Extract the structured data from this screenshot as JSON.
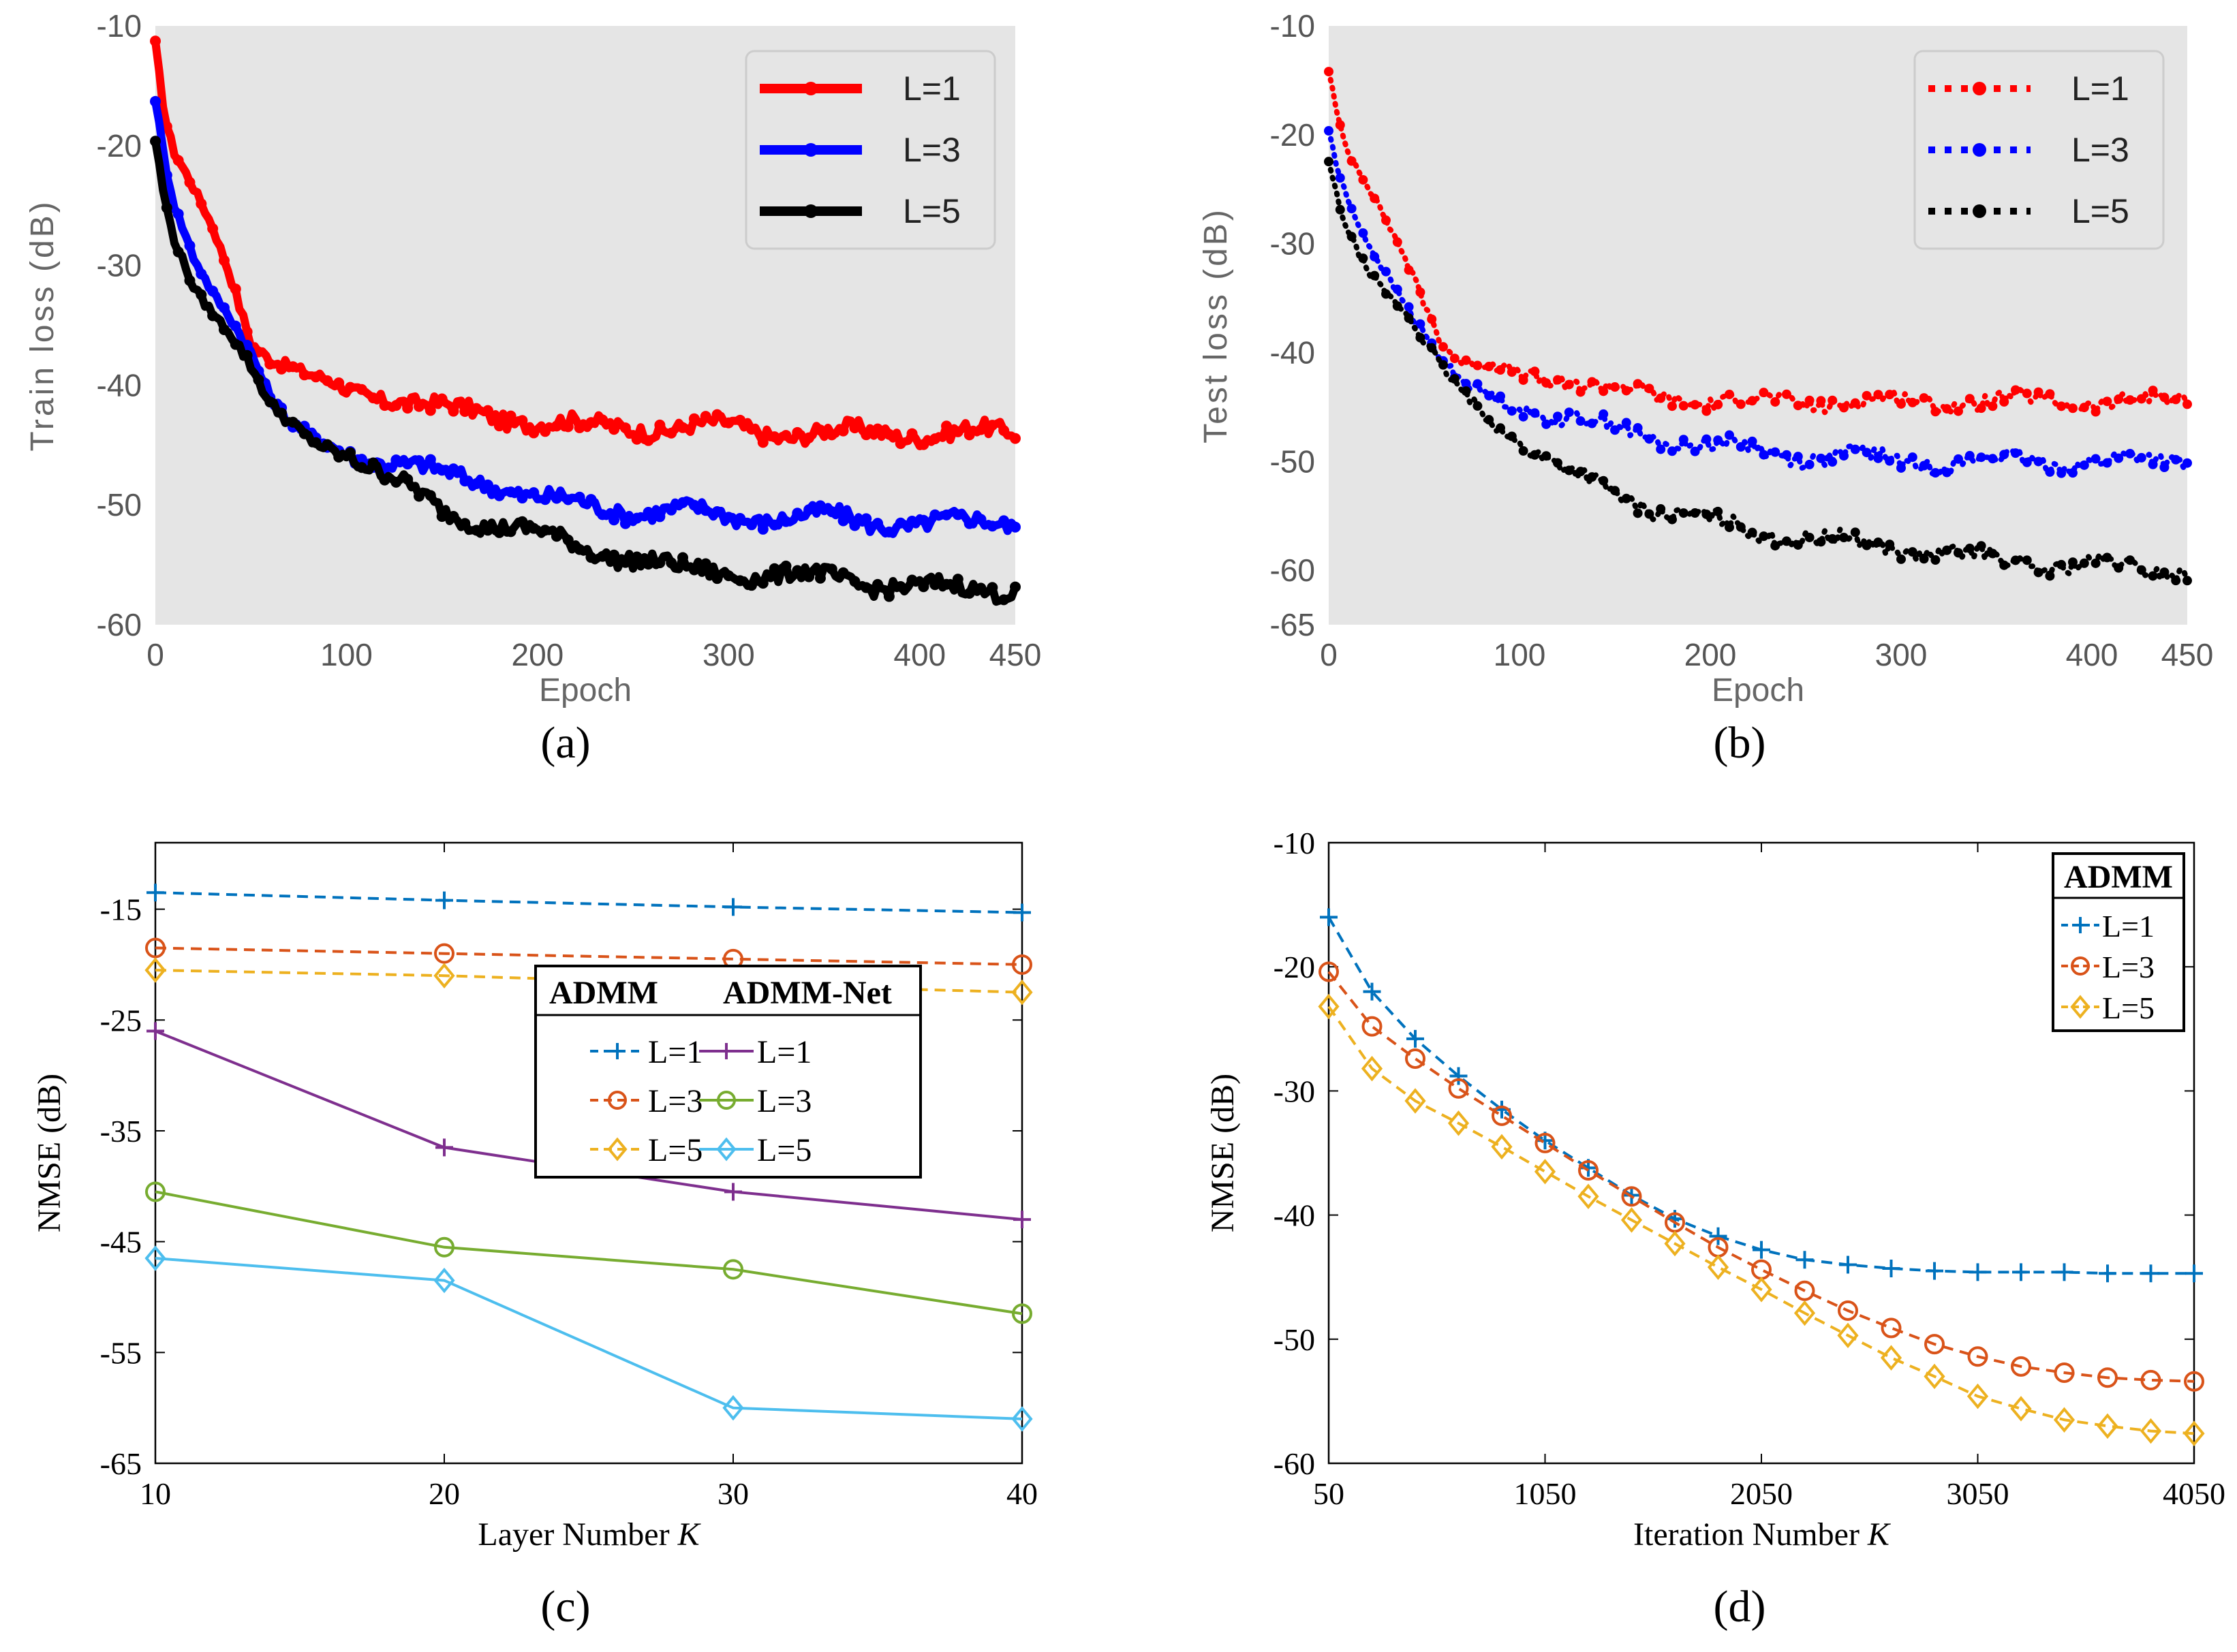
{
  "panels": [
    {
      "id": "a",
      "caption": "(a)",
      "chart_data": {
        "type": "line",
        "title": "",
        "xlabel": "Epoch",
        "ylabel": "Train  loss (dB)",
        "xlim": [
          0,
          450
        ],
        "ylim": [
          -60,
          -10
        ],
        "xticks": [
          0,
          100,
          200,
          300,
          400,
          450
        ],
        "yticks": [
          -10,
          -20,
          -30,
          -40,
          -50,
          -60
        ],
        "background": "#e5e5e5",
        "grid": false,
        "legend": "top-right",
        "series": [
          {
            "name": "L=1",
            "color": "#ff0000",
            "style": "solid-marker",
            "x": [
              0,
              5,
              10,
              20,
              30,
              40,
              50,
              60,
              70,
              80,
              100,
              125,
              150,
              175,
              200,
              225,
              250,
              275,
              300,
              325,
              350,
              375,
              400,
              425,
              450
            ],
            "y": [
              -11.5,
              -18,
              -21,
              -24,
              -27,
              -31,
              -36,
              -37.5,
              -38.5,
              -39.5,
              -40.5,
              -41,
              -42,
              -42.5,
              -43,
              -43.5,
              -43.5,
              -43.5,
              -43.5,
              -44,
              -44,
              -44,
              -44,
              -44,
              -44
            ]
          },
          {
            "name": "L=3",
            "color": "#0000ff",
            "style": "solid-marker",
            "x": [
              0,
              5,
              10,
              20,
              30,
              40,
              50,
              60,
              70,
              80,
              100,
              125,
              150,
              175,
              200,
              225,
              250,
              275,
              300,
              325,
              350,
              375,
              400,
              425,
              450
            ],
            "y": [
              -16.5,
              -22,
              -25.5,
              -29.5,
              -32,
              -34,
              -37,
              -41,
              -43.5,
              -44.5,
              -45.5,
              -46.5,
              -47.5,
              -48,
              -49.5,
              -50,
              -50.5,
              -50.5,
              -51,
              -51,
              -51,
              -51.5,
              -51.5,
              -51.5,
              -51.5
            ]
          },
          {
            "name": "L=5",
            "color": "#000000",
            "style": "solid-marker",
            "x": [
              0,
              5,
              10,
              20,
              30,
              40,
              50,
              60,
              70,
              80,
              100,
              125,
              150,
              175,
              200,
              225,
              250,
              275,
              300,
              325,
              350,
              375,
              400,
              425,
              450
            ],
            "y": [
              -20,
              -25,
              -28,
              -31.5,
              -33.5,
              -35.5,
              -38.5,
              -42,
              -43.5,
              -44.5,
              -45.5,
              -48,
              -50.5,
              -51.5,
              -52.5,
              -53.5,
              -54.5,
              -55.5,
              -55.5,
              -56,
              -56,
              -56.5,
              -57,
              -57,
              -57
            ]
          }
        ]
      }
    },
    {
      "id": "b",
      "caption": "(b)",
      "chart_data": {
        "type": "line",
        "title": "",
        "xlabel": "Epoch",
        "ylabel": "Test  loss (dB)",
        "xlim": [
          0,
          450
        ],
        "ylim": [
          -65,
          -10
        ],
        "xticks": [
          0,
          100,
          200,
          300,
          400,
          450
        ],
        "yticks": [
          -10,
          -20,
          -30,
          -40,
          -50,
          -60,
          -65
        ],
        "background": "#e5e5e5",
        "grid": false,
        "legend": "top-right",
        "series": [
          {
            "name": "L=1",
            "color": "#ff0000",
            "style": "dotted-marker",
            "x": [
              0,
              5,
              10,
              20,
              30,
              40,
              50,
              60,
              70,
              80,
              100,
              125,
              150,
              175,
              200,
              225,
              250,
              275,
              300,
              325,
              350,
              375,
              400,
              425,
              450
            ],
            "y": [
              -14,
              -19,
              -22,
              -25,
              -28,
              -31,
              -35,
              -39,
              -41,
              -41.5,
              -42,
              -42.5,
              -43.5,
              -44,
              -44.5,
              -44.5,
              -44.5,
              -44.5,
              -44.5,
              -44.5,
              -44.5,
              -44.5,
              -44.5,
              -44.5,
              -44.5
            ]
          },
          {
            "name": "L=3",
            "color": "#0000ff",
            "style": "dotted-marker",
            "x": [
              0,
              5,
              10,
              20,
              30,
              40,
              50,
              60,
              70,
              80,
              100,
              125,
              150,
              175,
              200,
              225,
              250,
              275,
              300,
              325,
              350,
              375,
              400,
              425,
              450
            ],
            "y": [
              -20,
              -24,
              -26.5,
              -30,
              -32.5,
              -35,
              -38,
              -41,
              -43,
              -44,
              -45,
              -46,
              -47,
              -48,
              -48.5,
              -49,
              -49.5,
              -49.5,
              -50,
              -50,
              -50,
              -50,
              -50,
              -50,
              -50
            ]
          },
          {
            "name": "L=5",
            "color": "#000000",
            "style": "dotted-marker",
            "x": [
              0,
              5,
              10,
              20,
              30,
              40,
              50,
              60,
              70,
              80,
              100,
              125,
              150,
              175,
              200,
              225,
              250,
              275,
              300,
              325,
              350,
              375,
              400,
              425,
              450
            ],
            "y": [
              -23,
              -26.5,
              -29,
              -32,
              -34,
              -36,
              -39,
              -42,
              -44,
              -45.5,
              -48,
              -51,
              -53,
              -54.5,
              -55.5,
              -56.5,
              -57,
              -57.5,
              -58,
              -58.5,
              -59,
              -59.5,
              -59.5,
              -60,
              -60
            ]
          }
        ]
      }
    },
    {
      "id": "c",
      "caption": "(c)",
      "chart_data": {
        "type": "line",
        "title": "",
        "xlabel": "Layer Number ",
        "xlabel_italic": "K",
        "ylabel": "NMSE (dB)",
        "xlim": [
          10,
          40
        ],
        "ylim": [
          -65,
          -9
        ],
        "xticks": [
          10,
          20,
          30,
          40
        ],
        "yticks": [
          -15,
          -25,
          -35,
          -45,
          -55,
          -65
        ],
        "grid": false,
        "legend": "center",
        "legend_header": [
          "ADMM",
          "ADMM-Net"
        ],
        "series": [
          {
            "name": "L=1",
            "group": "ADMM",
            "color": "#0072bd",
            "dash": true,
            "marker": "plus",
            "x": [
              10,
              20,
              30,
              40
            ],
            "y": [
              -13.5,
              -14.2,
              -14.8,
              -15.3
            ]
          },
          {
            "name": "L=3",
            "group": "ADMM",
            "color": "#d95319",
            "dash": true,
            "marker": "circle",
            "x": [
              10,
              20,
              30,
              40
            ],
            "y": [
              -18.5,
              -19,
              -19.5,
              -20
            ]
          },
          {
            "name": "L=5",
            "group": "ADMM",
            "color": "#edb120",
            "dash": true,
            "marker": "diamond",
            "x": [
              10,
              20,
              30,
              40
            ],
            "y": [
              -20.5,
              -21,
              -21.8,
              -22.5
            ]
          },
          {
            "name": "L=1",
            "group": "ADMM-Net",
            "color": "#7e2f8e",
            "dash": false,
            "marker": "plus",
            "x": [
              10,
              20,
              30,
              40
            ],
            "y": [
              -26,
              -36.5,
              -40.5,
              -43
            ]
          },
          {
            "name": "L=3",
            "group": "ADMM-Net",
            "color": "#77ac30",
            "dash": false,
            "marker": "circle",
            "x": [
              10,
              20,
              30,
              40
            ],
            "y": [
              -40.5,
              -45.5,
              -47.5,
              -51.5
            ]
          },
          {
            "name": "L=5",
            "group": "ADMM-Net",
            "color": "#4dbeee",
            "dash": false,
            "marker": "diamond",
            "x": [
              10,
              20,
              30,
              40
            ],
            "y": [
              -46.5,
              -48.5,
              -60,
              -61
            ]
          }
        ]
      }
    },
    {
      "id": "d",
      "caption": "(d)",
      "chart_data": {
        "type": "line",
        "title": "",
        "xlabel": "Iteration Number ",
        "xlabel_italic": "K",
        "ylabel": "NMSE (dB)",
        "xlim": [
          50,
          4050
        ],
        "ylim": [
          -60,
          -10
        ],
        "xticks": [
          50,
          1050,
          2050,
          3050,
          4050
        ],
        "yticks": [
          -10,
          -20,
          -30,
          -40,
          -50,
          -60
        ],
        "grid": false,
        "legend": "top-right",
        "legend_header": [
          "ADMM"
        ],
        "series": [
          {
            "name": "L=1",
            "color": "#0072bd",
            "dash": true,
            "marker": "plus",
            "x": [
              50,
              250,
              450,
              650,
              850,
              1050,
              1250,
              1450,
              1650,
              1850,
              2050,
              2250,
              2450,
              2650,
              2850,
              3050,
              3250,
              3450,
              3650,
              3850,
              4050
            ],
            "y": [
              -16,
              -22,
              -25.8,
              -28.8,
              -31.5,
              -34,
              -36.2,
              -38.4,
              -40.3,
              -41.7,
              -42.8,
              -43.6,
              -44,
              -44.3,
              -44.5,
              -44.6,
              -44.6,
              -44.6,
              -44.7,
              -44.7,
              -44.7
            ]
          },
          {
            "name": "L=3",
            "color": "#d95319",
            "dash": true,
            "marker": "circle",
            "x": [
              50,
              250,
              450,
              650,
              850,
              1050,
              1250,
              1450,
              1650,
              1850,
              2050,
              2250,
              2450,
              2650,
              2850,
              3050,
              3250,
              3450,
              3650,
              3850,
              4050
            ],
            "y": [
              -20.4,
              -24.8,
              -27.4,
              -29.8,
              -32,
              -34.2,
              -36.4,
              -38.5,
              -40.6,
              -42.6,
              -44.4,
              -46.1,
              -47.7,
              -49.1,
              -50.4,
              -51.4,
              -52.2,
              -52.7,
              -53.1,
              -53.3,
              -53.4
            ]
          },
          {
            "name": "L=5",
            "color": "#edb120",
            "dash": true,
            "marker": "diamond",
            "x": [
              50,
              250,
              450,
              650,
              850,
              1050,
              1250,
              1450,
              1650,
              1850,
              2050,
              2250,
              2450,
              2650,
              2850,
              3050,
              3250,
              3450,
              3650,
              3850,
              4050
            ],
            "y": [
              -23.2,
              -28.2,
              -30.8,
              -32.6,
              -34.5,
              -36.5,
              -38.5,
              -40.4,
              -42.3,
              -44.2,
              -46,
              -47.9,
              -49.7,
              -51.5,
              -53,
              -54.6,
              -55.6,
              -56.5,
              -57,
              -57.4,
              -57.6
            ]
          }
        ]
      }
    }
  ]
}
